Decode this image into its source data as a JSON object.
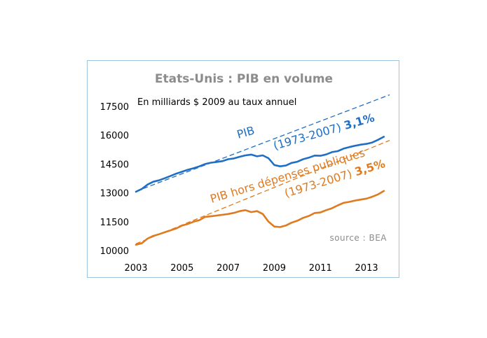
{
  "chart_data": {
    "type": "line",
    "title": "Etats-Unis : PIB en volume",
    "subtitle": "En milliards $ 2009 au taux annuel",
    "source": "source : BEA",
    "ylim": [
      10000,
      17500
    ],
    "xlim": [
      2003,
      2014
    ],
    "yticks": [
      "17500",
      "16000",
      "14500",
      "13000",
      "11500",
      "10000"
    ],
    "xticks": [
      "2003",
      "2005",
      "2007",
      "2009",
      "2011",
      "2013"
    ],
    "grid": false,
    "series": [
      {
        "name": "PIB",
        "color": "#1f6fc5",
        "x": [
          2003.0,
          2003.25,
          2003.5,
          2003.75,
          2004.0,
          2004.25,
          2004.5,
          2004.75,
          2005.0,
          2005.25,
          2005.5,
          2005.75,
          2006.0,
          2006.25,
          2006.5,
          2006.75,
          2007.0,
          2007.25,
          2007.5,
          2007.75,
          2008.0,
          2008.25,
          2008.5,
          2008.75,
          2009.0,
          2009.25,
          2009.5,
          2009.75,
          2010.0,
          2010.25,
          2010.5,
          2010.75,
          2011.0,
          2011.25,
          2011.5,
          2011.75,
          2012.0,
          2012.25,
          2012.5,
          2012.75,
          2013.0,
          2013.25,
          2013.5,
          2013.75
        ],
        "values": [
          13060,
          13200,
          13430,
          13580,
          13650,
          13760,
          13880,
          14000,
          14100,
          14200,
          14280,
          14380,
          14500,
          14570,
          14610,
          14650,
          14750,
          14790,
          14880,
          14950,
          14990,
          14900,
          14950,
          14800,
          14450,
          14380,
          14420,
          14560,
          14620,
          14750,
          14830,
          14940,
          14930,
          15000,
          15120,
          15170,
          15300,
          15380,
          15450,
          15510,
          15550,
          15620,
          15760,
          15920
        ]
      },
      {
        "name": "PIB hors dépenses publiques",
        "color": "#e07a1f",
        "x": [
          2003.0,
          2003.25,
          2003.5,
          2003.75,
          2004.0,
          2004.25,
          2004.5,
          2004.75,
          2005.0,
          2005.25,
          2005.5,
          2005.75,
          2006.0,
          2006.25,
          2006.5,
          2006.75,
          2007.0,
          2007.25,
          2007.5,
          2007.75,
          2008.0,
          2008.25,
          2008.5,
          2008.75,
          2009.0,
          2009.25,
          2009.5,
          2009.75,
          2010.0,
          2010.25,
          2010.5,
          2010.75,
          2011.0,
          2011.25,
          2011.5,
          2011.75,
          2012.0,
          2012.25,
          2012.5,
          2012.75,
          2013.0,
          2013.25,
          2013.5,
          2013.75
        ],
        "values": [
          10300,
          10380,
          10620,
          10760,
          10850,
          10950,
          11050,
          11150,
          11300,
          11380,
          11500,
          11580,
          11750,
          11780,
          11820,
          11860,
          11900,
          11960,
          12050,
          12100,
          12000,
          12050,
          11900,
          11500,
          11250,
          11220,
          11300,
          11450,
          11550,
          11700,
          11800,
          11950,
          11980,
          12100,
          12200,
          12350,
          12480,
          12530,
          12600,
          12650,
          12700,
          12800,
          12920,
          13100
        ]
      }
    ],
    "trends": [
      {
        "series": "PIB",
        "x": [
          2003.0,
          2014.0
        ],
        "values": [
          13080,
          18100
        ],
        "style": "dashed"
      },
      {
        "series": "PIB hors dépenses publiques",
        "x": [
          2003.0,
          2014.0
        ],
        "values": [
          10350,
          15730
        ],
        "style": "dashed"
      }
    ],
    "annotations": {
      "blue_label": "PIB",
      "blue_period": "(1973-2007)",
      "blue_rate": "3,1%",
      "orange_label": "PIB hors dépenses publiques",
      "orange_period": "(1973-2007)",
      "orange_rate": "3,5%"
    }
  }
}
